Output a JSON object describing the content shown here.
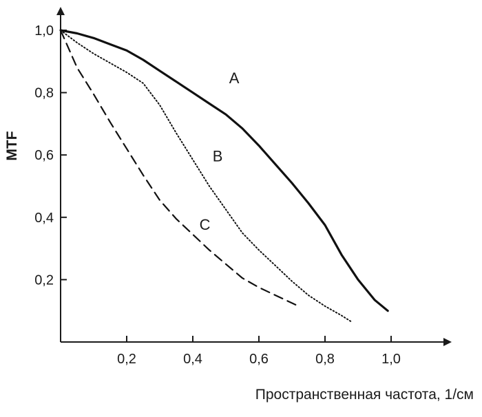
{
  "chart_data": {
    "type": "line",
    "title": "",
    "xlabel": "Пространственная частота, 1/см",
    "ylabel": "MTF",
    "xlim": [
      0,
      1.15
    ],
    "ylim": [
      0,
      1.05
    ],
    "grid": false,
    "x_ticks": [
      0.2,
      0.4,
      0.6,
      0.8,
      1.0
    ],
    "x_tick_labels": [
      "0,2",
      "0,4",
      "0,6",
      "0,8",
      "1,0"
    ],
    "y_ticks": [
      0.2,
      0.4,
      0.6,
      0.8,
      1.0
    ],
    "y_tick_labels": [
      "0,2",
      "0,4",
      "0,6",
      "0,8",
      "1,0"
    ],
    "series": [
      {
        "label": "A",
        "style": "solid",
        "label_at": [
          0.51,
          0.83
        ],
        "x": [
          0,
          0.05,
          0.1,
          0.15,
          0.2,
          0.25,
          0.3,
          0.35,
          0.4,
          0.45,
          0.5,
          0.55,
          0.6,
          0.65,
          0.7,
          0.75,
          0.8,
          0.85,
          0.9,
          0.95,
          0.99
        ],
        "y": [
          1.0,
          0.99,
          0.975,
          0.955,
          0.935,
          0.905,
          0.87,
          0.835,
          0.8,
          0.765,
          0.73,
          0.685,
          0.63,
          0.57,
          0.51,
          0.445,
          0.375,
          0.28,
          0.2,
          0.135,
          0.1
        ]
      },
      {
        "label": "B",
        "style": "dotted",
        "label_at": [
          0.46,
          0.58
        ],
        "x": [
          0,
          0.05,
          0.1,
          0.15,
          0.2,
          0.25,
          0.3,
          0.35,
          0.4,
          0.45,
          0.5,
          0.55,
          0.6,
          0.65,
          0.7,
          0.75,
          0.8,
          0.85,
          0.88
        ],
        "y": [
          1.0,
          0.96,
          0.925,
          0.895,
          0.865,
          0.83,
          0.76,
          0.67,
          0.585,
          0.5,
          0.425,
          0.35,
          0.295,
          0.245,
          0.195,
          0.15,
          0.115,
          0.085,
          0.065
        ]
      },
      {
        "label": "C",
        "style": "dashed",
        "label_at": [
          0.42,
          0.36
        ],
        "x": [
          0,
          0.05,
          0.1,
          0.15,
          0.2,
          0.25,
          0.3,
          0.35,
          0.4,
          0.45,
          0.5,
          0.55,
          0.6,
          0.65,
          0.7,
          0.72
        ],
        "y": [
          1.0,
          0.88,
          0.795,
          0.705,
          0.62,
          0.535,
          0.455,
          0.395,
          0.345,
          0.295,
          0.25,
          0.205,
          0.175,
          0.15,
          0.125,
          0.115
        ]
      }
    ]
  }
}
